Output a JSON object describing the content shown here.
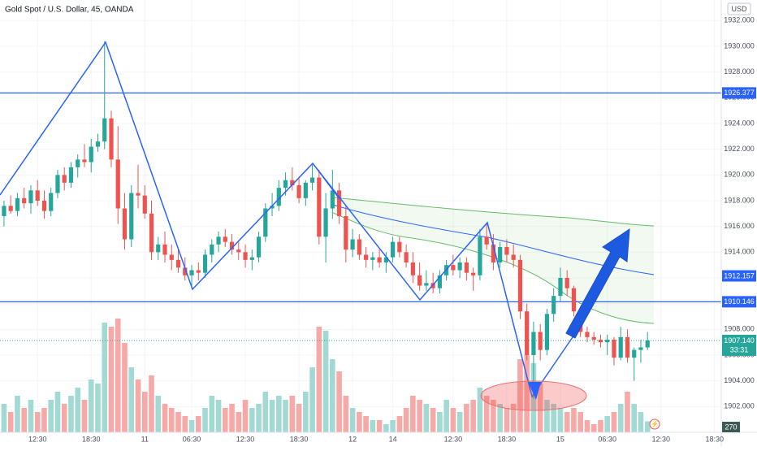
{
  "chart_data": {
    "type": "candlestick",
    "title": "Gold Spot / U.S. Dollar, 45, OANDA",
    "currency": "USD",
    "up_color": "#26a69a",
    "down_color": "#ef5350",
    "volume_up_color": "#a3d9d3",
    "volume_down_color": "#f7a9a7",
    "ylim": [
      1900,
      1933.6
    ],
    "yticks": [
      {
        "value": 1932,
        "label": "1932.000"
      },
      {
        "value": 1930,
        "label": "1930.000"
      },
      {
        "value": 1928,
        "label": "1928.000"
      },
      {
        "value": 1926,
        "label": "1926.000"
      },
      {
        "value": 1924,
        "label": "1924.000"
      },
      {
        "value": 1922,
        "label": "1922.000"
      },
      {
        "value": 1920,
        "label": "1920.000"
      },
      {
        "value": 1918,
        "label": "1918.000"
      },
      {
        "value": 1916,
        "label": "1916.000"
      },
      {
        "value": 1914,
        "label": "1914.000"
      },
      {
        "value": 1912,
        "label": "1912.000"
      },
      {
        "value": 1910,
        "label": "1910.000"
      },
      {
        "value": 1908,
        "label": "1908.000"
      },
      {
        "value": 1906,
        "label": "1906.000"
      },
      {
        "value": 1904,
        "label": "1904.000"
      },
      {
        "value": 1902,
        "label": "1902.000"
      }
    ],
    "xlim": [
      -0.6,
      107
    ],
    "xticks": [
      {
        "value": 5,
        "label": "12:30"
      },
      {
        "value": 13,
        "label": "18:30"
      },
      {
        "value": 21,
        "label": "11"
      },
      {
        "value": 28,
        "label": "06:30"
      },
      {
        "value": 36,
        "label": "12:30"
      },
      {
        "value": 44,
        "label": "18:30"
      },
      {
        "value": 52,
        "label": "12"
      },
      {
        "value": 58,
        "label": "14"
      },
      {
        "value": 67,
        "label": "12:30"
      },
      {
        "value": 75,
        "label": "18:30"
      },
      {
        "value": 83,
        "label": "15"
      },
      {
        "value": 90,
        "label": "06:30"
      },
      {
        "value": 98,
        "label": "12:30"
      },
      {
        "value": 106,
        "label": "18:30"
      }
    ],
    "levels": [
      {
        "value": 1926.377,
        "label": "1926.377",
        "line": true
      },
      {
        "value": 1912.157,
        "label": "1912.157",
        "line": false
      },
      {
        "value": 1910.146,
        "label": "1910.146",
        "line": true
      }
    ],
    "last_price": {
      "value": 1907.14,
      "label": "1907.140"
    },
    "countdown": "33:31",
    "volume_lim": [
      0,
      3000
    ],
    "candles": [
      [
        1916.8,
        1918.0,
        1916.0,
        1917.6
      ],
      [
        1917.6,
        1918.4,
        1917.0,
        1917.2
      ],
      [
        1917.2,
        1918.6,
        1916.8,
        1918.2
      ],
      [
        1918.2,
        1919.0,
        1917.4,
        1917.8
      ],
      [
        1917.8,
        1919.2,
        1917.0,
        1918.8
      ],
      [
        1918.8,
        1919.6,
        1917.6,
        1918.0
      ],
      [
        1918.0,
        1918.8,
        1916.6,
        1917.2
      ],
      [
        1917.2,
        1919.0,
        1916.8,
        1918.6
      ],
      [
        1918.6,
        1920.4,
        1918.2,
        1920.0
      ],
      [
        1920.0,
        1920.6,
        1918.8,
        1919.4
      ],
      [
        1919.4,
        1921.0,
        1919.0,
        1920.6
      ],
      [
        1920.6,
        1921.6,
        1919.8,
        1921.2
      ],
      [
        1921.2,
        1922.4,
        1920.6,
        1921.0
      ],
      [
        1921.0,
        1922.8,
        1920.2,
        1922.2
      ],
      [
        1922.2,
        1923.2,
        1921.8,
        1922.6
      ],
      [
        1922.6,
        1930.4,
        1922.0,
        1924.4
      ],
      [
        1924.4,
        1925.0,
        1920.6,
        1921.2
      ],
      [
        1921.2,
        1923.8,
        1916.2,
        1917.4
      ],
      [
        1917.4,
        1918.6,
        1914.2,
        1915.0
      ],
      [
        1915.0,
        1919.2,
        1914.4,
        1918.6
      ],
      [
        1918.6,
        1920.8,
        1917.4,
        1918.4
      ],
      [
        1918.4,
        1919.2,
        1916.6,
        1917.0
      ],
      [
        1917.0,
        1918.0,
        1913.4,
        1914.0
      ],
      [
        1914.0,
        1915.2,
        1913.4,
        1914.6
      ],
      [
        1914.6,
        1915.6,
        1913.2,
        1913.8
      ],
      [
        1913.8,
        1914.6,
        1912.6,
        1913.4
      ],
      [
        1913.4,
        1914.2,
        1912.4,
        1912.8
      ],
      [
        1912.8,
        1913.6,
        1911.8,
        1912.2
      ],
      [
        1912.2,
        1913.0,
        1911.2,
        1912.6
      ],
      [
        1912.6,
        1913.2,
        1911.8,
        1912.4
      ],
      [
        1912.4,
        1914.2,
        1912.0,
        1913.8
      ],
      [
        1913.8,
        1915.0,
        1913.2,
        1914.6
      ],
      [
        1914.6,
        1915.6,
        1914.0,
        1915.2
      ],
      [
        1915.2,
        1915.8,
        1914.4,
        1914.8
      ],
      [
        1914.8,
        1915.4,
        1913.8,
        1914.2
      ],
      [
        1914.2,
        1914.8,
        1913.4,
        1914.0
      ],
      [
        1914.0,
        1914.6,
        1912.8,
        1913.4
      ],
      [
        1913.4,
        1914.2,
        1912.6,
        1913.6
      ],
      [
        1913.6,
        1915.6,
        1913.2,
        1915.2
      ],
      [
        1915.2,
        1917.8,
        1914.8,
        1917.4
      ],
      [
        1917.4,
        1918.6,
        1916.8,
        1917.6
      ],
      [
        1917.6,
        1919.6,
        1917.2,
        1919.0
      ],
      [
        1919.0,
        1920.2,
        1918.4,
        1919.6
      ],
      [
        1919.6,
        1920.6,
        1918.8,
        1919.2
      ],
      [
        1919.2,
        1919.8,
        1917.8,
        1918.2
      ],
      [
        1918.2,
        1919.6,
        1917.6,
        1919.4
      ],
      [
        1919.4,
        1920.8,
        1918.8,
        1919.8
      ],
      [
        1919.8,
        1920.4,
        1914.6,
        1915.2
      ],
      [
        1915.2,
        1918.6,
        1913.2,
        1917.4
      ],
      [
        1917.4,
        1920.4,
        1916.6,
        1918.8
      ],
      [
        1918.8,
        1919.4,
        1916.2,
        1916.8
      ],
      [
        1916.8,
        1917.6,
        1913.2,
        1914.2
      ],
      [
        1914.2,
        1915.8,
        1913.6,
        1915.0
      ],
      [
        1915.0,
        1915.4,
        1913.4,
        1913.8
      ],
      [
        1913.8,
        1914.4,
        1912.8,
        1913.4
      ],
      [
        1913.4,
        1914.0,
        1912.6,
        1913.6
      ],
      [
        1913.6,
        1914.2,
        1912.8,
        1913.2
      ],
      [
        1913.2,
        1914.0,
        1912.4,
        1913.6
      ],
      [
        1913.6,
        1915.2,
        1913.2,
        1914.8
      ],
      [
        1914.8,
        1915.2,
        1913.6,
        1914.0
      ],
      [
        1914.0,
        1914.6,
        1912.8,
        1913.2
      ],
      [
        1913.2,
        1914.0,
        1911.6,
        1912.2
      ],
      [
        1912.2,
        1913.2,
        1911.0,
        1911.4
      ],
      [
        1911.4,
        1912.6,
        1911.0,
        1911.6
      ],
      [
        1911.6,
        1912.4,
        1910.8,
        1911.2
      ],
      [
        1911.2,
        1912.6,
        1910.8,
        1912.2
      ],
      [
        1912.2,
        1913.4,
        1911.8,
        1913.0
      ],
      [
        1913.0,
        1913.8,
        1912.2,
        1912.6
      ],
      [
        1912.6,
        1913.6,
        1912.0,
        1913.2
      ],
      [
        1913.2,
        1913.6,
        1911.8,
        1912.4
      ],
      [
        1912.4,
        1912.8,
        1911.0,
        1912.2
      ],
      [
        1912.2,
        1915.8,
        1911.8,
        1915.2
      ],
      [
        1915.2,
        1916.2,
        1914.2,
        1914.6
      ],
      [
        1914.6,
        1915.4,
        1912.6,
        1913.2
      ],
      [
        1913.2,
        1914.8,
        1912.8,
        1914.4
      ],
      [
        1914.4,
        1915.0,
        1913.2,
        1913.8
      ],
      [
        1913.8,
        1914.6,
        1912.8,
        1913.4
      ],
      [
        1913.4,
        1913.8,
        1908.8,
        1909.4
      ],
      [
        1909.4,
        1910.0,
        1905.6,
        1906.0
      ],
      [
        1906.0,
        1908.6,
        1902.6,
        1907.8
      ],
      [
        1907.8,
        1908.4,
        1905.6,
        1906.4
      ],
      [
        1906.4,
        1909.6,
        1906.0,
        1909.2
      ],
      [
        1909.2,
        1911.2,
        1908.6,
        1910.6
      ],
      [
        1910.6,
        1912.8,
        1910.2,
        1912.0
      ],
      [
        1912.0,
        1912.6,
        1910.6,
        1911.2
      ],
      [
        1911.2,
        1911.4,
        1909.0,
        1909.4
      ],
      [
        1909.4,
        1909.8,
        1907.4,
        1907.8
      ],
      [
        1907.8,
        1908.2,
        1907.0,
        1907.4
      ],
      [
        1907.4,
        1907.8,
        1906.8,
        1907.2
      ],
      [
        1907.2,
        1907.6,
        1906.6,
        1907.0
      ],
      [
        1907.0,
        1907.6,
        1906.0,
        1907.2
      ],
      [
        1907.2,
        1907.4,
        1905.2,
        1905.8
      ],
      [
        1905.8,
        1908.2,
        1905.6,
        1907.4
      ],
      [
        1907.4,
        1908.0,
        1905.4,
        1905.8
      ],
      [
        1905.8,
        1906.6,
        1904.0,
        1906.4
      ],
      [
        1906.4,
        1907.2,
        1905.4,
        1906.6
      ],
      [
        1906.6,
        1907.8,
        1906.4,
        1907.14
      ]
    ],
    "volume": [
      700,
      500,
      900,
      600,
      800,
      500,
      600,
      800,
      1000,
      700,
      900,
      1100,
      800,
      1300,
      1200,
      2700,
      2600,
      2800,
      2200,
      1600,
      1300,
      1000,
      1400,
      900,
      700,
      600,
      500,
      400,
      300,
      400,
      600,
      900,
      800,
      600,
      700,
      500,
      800,
      600,
      700,
      1000,
      800,
      900,
      800,
      900,
      700,
      1000,
      1600,
      2600,
      2500,
      1800,
      1500,
      900,
      600,
      500,
      400,
      300,
      300,
      200,
      300,
      400,
      600,
      900,
      800,
      700,
      600,
      500,
      800,
      600,
      500,
      700,
      800,
      1100,
      900,
      800,
      700,
      600,
      700,
      1800,
      1900,
      1700,
      1200,
      800,
      700,
      600,
      500,
      600,
      500,
      300,
      200,
      300,
      400,
      500,
      700,
      1000,
      700,
      500,
      270
    ]
  }
}
